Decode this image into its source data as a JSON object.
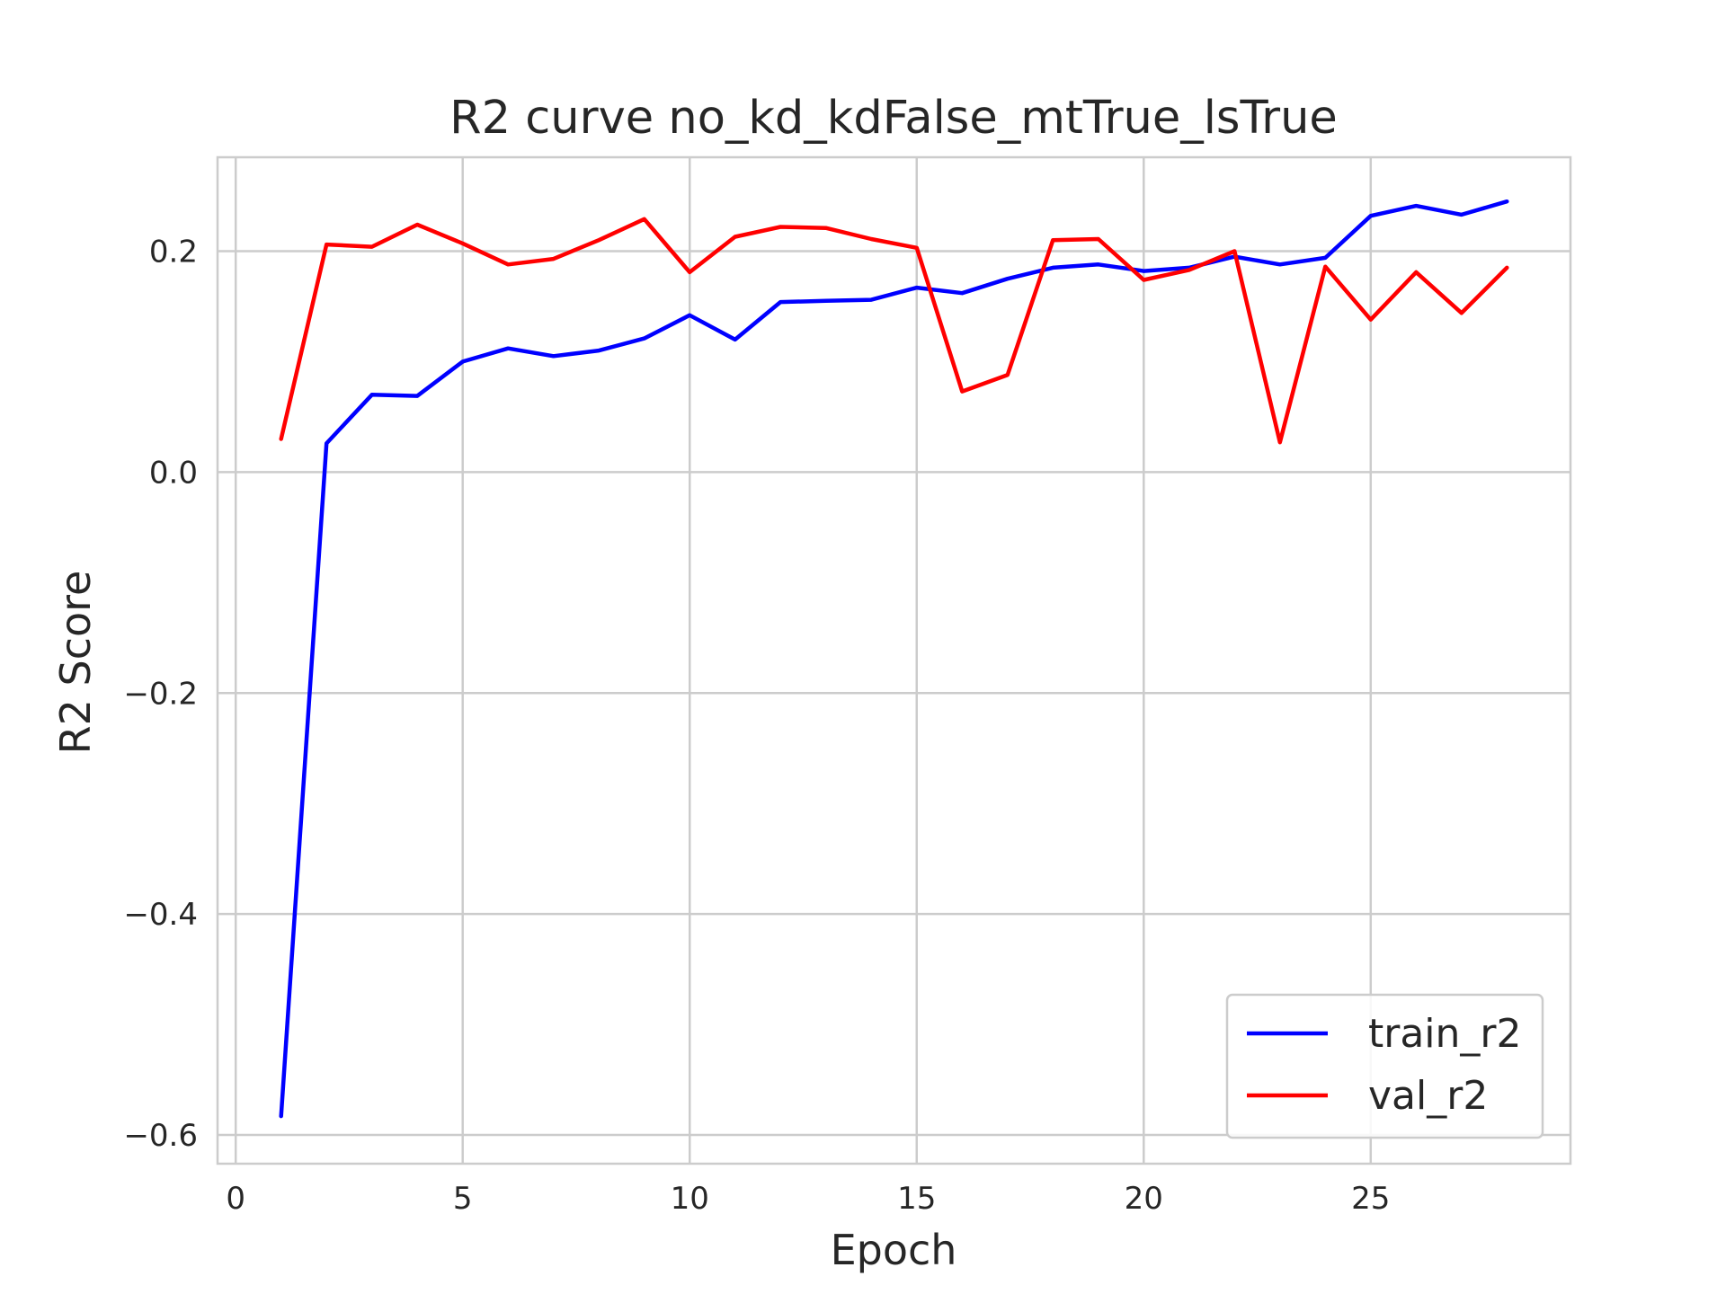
{
  "chart_data": {
    "type": "line",
    "title": "R2 curve no_kd_kdFalse_mtTrue_lsTrue",
    "xlabel": "Epoch",
    "ylabel": "R2 Score",
    "xlim": [
      -0.4,
      29.4
    ],
    "ylim": [
      -0.626,
      0.285
    ],
    "x_ticks": [
      0,
      5,
      10,
      15,
      20,
      25
    ],
    "x_tick_labels": [
      "0",
      "5",
      "10",
      "15",
      "20",
      "25"
    ],
    "y_ticks": [
      -0.6,
      -0.4,
      -0.2,
      0.0,
      0.2
    ],
    "y_tick_labels": [
      "−0.6",
      "−0.4",
      "−0.2",
      "0.0",
      "0.2"
    ],
    "grid": true,
    "legend_position": "bottom-right",
    "x": [
      1,
      2,
      3,
      4,
      5,
      6,
      7,
      8,
      9,
      10,
      11,
      12,
      13,
      14,
      15,
      16,
      17,
      18,
      19,
      20,
      21,
      22,
      23,
      24,
      25,
      26,
      27,
      28
    ],
    "series": [
      {
        "name": "train_r2",
        "color": "#0000ff",
        "values": [
          -0.583,
          0.026,
          0.07,
          0.069,
          0.1,
          0.112,
          0.105,
          0.11,
          0.121,
          0.142,
          0.12,
          0.154,
          0.155,
          0.156,
          0.167,
          0.162,
          0.175,
          0.185,
          0.188,
          0.182,
          0.185,
          0.195,
          0.188,
          0.194,
          0.232,
          0.241,
          0.233,
          0.245
        ]
      },
      {
        "name": "val_r2",
        "color": "#ff0000",
        "values": [
          0.03,
          0.206,
          0.204,
          0.224,
          0.207,
          0.188,
          0.193,
          0.21,
          0.229,
          0.181,
          0.213,
          0.222,
          0.221,
          0.211,
          0.203,
          0.073,
          0.088,
          0.21,
          0.211,
          0.174,
          0.183,
          0.2,
          0.027,
          0.186,
          0.138,
          0.181,
          0.144,
          0.185
        ]
      }
    ]
  }
}
